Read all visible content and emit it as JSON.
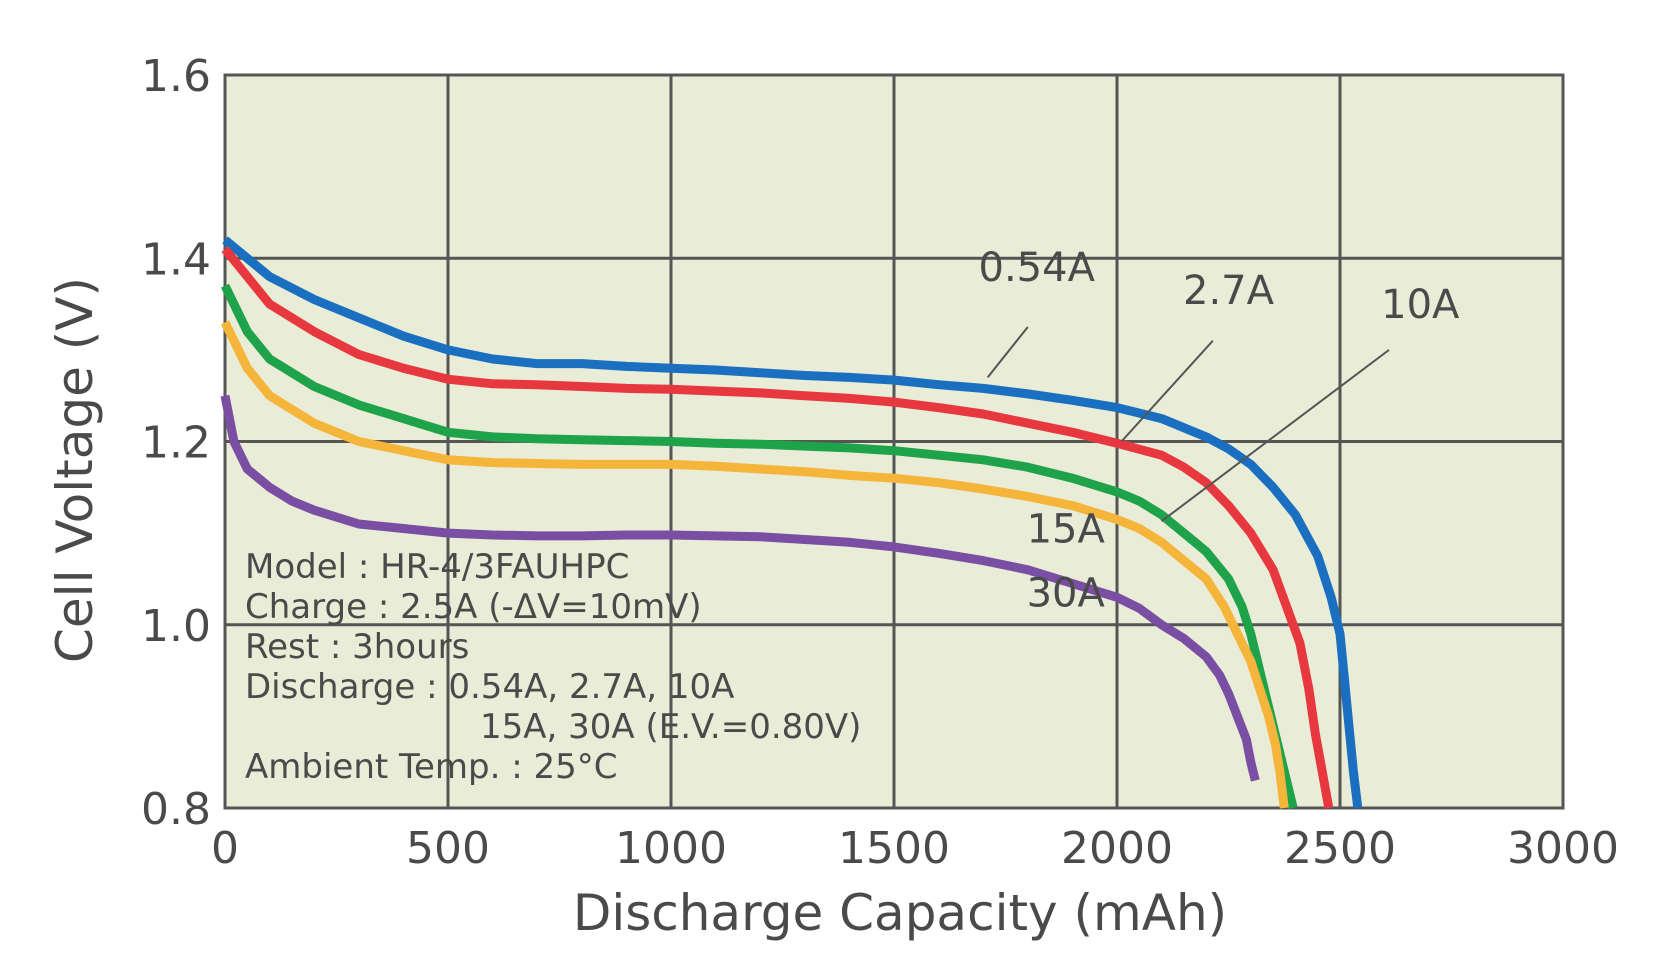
{
  "chart_data": {
    "type": "line",
    "xlabel": "Discharge Capacity (mAh)",
    "ylabel": "Cell Voltage (V)",
    "xlim": [
      0,
      3000
    ],
    "ylim": [
      0.8,
      1.6
    ],
    "xticks": [
      0,
      500,
      1000,
      1500,
      2000,
      2500,
      3000
    ],
    "yticks": [
      0.8,
      1.0,
      1.2,
      1.4,
      1.6
    ],
    "xtick_labels": [
      "0",
      "500",
      "1000",
      "1500",
      "2000",
      "2500",
      "3000"
    ],
    "ytick_labels": [
      "0.8",
      "1.0",
      "1.2",
      "1.4",
      "1.6"
    ],
    "grid": true,
    "colors": {
      "plot_background": "#e9ecd6",
      "grid": "#555555",
      "text": "#4a4a4a"
    },
    "series": [
      {
        "name": "0.54A",
        "color": "#1a6fc0",
        "x": [
          0,
          100,
          200,
          300,
          400,
          500,
          600,
          700,
          800,
          900,
          1000,
          1100,
          1200,
          1300,
          1400,
          1500,
          1600,
          1700,
          1800,
          1900,
          2000,
          2100,
          2200,
          2250,
          2300,
          2350,
          2400,
          2450,
          2480,
          2500,
          2510,
          2520,
          2530,
          2540
        ],
        "y": [
          1.42,
          1.38,
          1.355,
          1.335,
          1.315,
          1.3,
          1.29,
          1.285,
          1.285,
          1.282,
          1.28,
          1.278,
          1.275,
          1.272,
          1.27,
          1.267,
          1.262,
          1.258,
          1.252,
          1.245,
          1.237,
          1.225,
          1.205,
          1.192,
          1.175,
          1.15,
          1.12,
          1.075,
          1.03,
          0.99,
          0.94,
          0.89,
          0.84,
          0.8
        ]
      },
      {
        "name": "2.7A",
        "color": "#e8383f",
        "x": [
          0,
          50,
          100,
          200,
          300,
          400,
          500,
          600,
          700,
          800,
          900,
          1000,
          1100,
          1200,
          1300,
          1400,
          1500,
          1600,
          1700,
          1800,
          1900,
          2000,
          2100,
          2150,
          2200,
          2250,
          2300,
          2350,
          2380,
          2410,
          2430,
          2445,
          2460,
          2475
        ],
        "y": [
          1.41,
          1.38,
          1.35,
          1.32,
          1.295,
          1.28,
          1.268,
          1.263,
          1.262,
          1.26,
          1.258,
          1.257,
          1.255,
          1.253,
          1.25,
          1.247,
          1.243,
          1.237,
          1.23,
          1.22,
          1.21,
          1.198,
          1.185,
          1.172,
          1.155,
          1.13,
          1.1,
          1.06,
          1.02,
          0.98,
          0.93,
          0.88,
          0.84,
          0.8
        ]
      },
      {
        "name": "10A",
        "color": "#1fa34a",
        "x": [
          0,
          50,
          100,
          200,
          300,
          400,
          500,
          600,
          700,
          800,
          900,
          1000,
          1100,
          1200,
          1300,
          1400,
          1500,
          1600,
          1700,
          1800,
          1900,
          2000,
          2050,
          2100,
          2150,
          2200,
          2250,
          2280,
          2300,
          2320,
          2340,
          2360,
          2380,
          2395
        ],
        "y": [
          1.37,
          1.32,
          1.29,
          1.26,
          1.24,
          1.225,
          1.21,
          1.205,
          1.203,
          1.202,
          1.201,
          1.2,
          1.198,
          1.197,
          1.195,
          1.193,
          1.19,
          1.185,
          1.18,
          1.172,
          1.16,
          1.145,
          1.135,
          1.12,
          1.1,
          1.08,
          1.05,
          1.02,
          0.99,
          0.95,
          0.91,
          0.87,
          0.83,
          0.8
        ]
      },
      {
        "name": "15A",
        "color": "#f5b53a",
        "x": [
          0,
          50,
          100,
          200,
          300,
          400,
          500,
          600,
          700,
          800,
          900,
          1000,
          1100,
          1200,
          1300,
          1400,
          1500,
          1600,
          1700,
          1800,
          1900,
          2000,
          2050,
          2100,
          2150,
          2200,
          2240,
          2270,
          2300,
          2320,
          2340,
          2355,
          2365,
          2375
        ],
        "y": [
          1.33,
          1.28,
          1.25,
          1.22,
          1.2,
          1.19,
          1.18,
          1.177,
          1.176,
          1.175,
          1.175,
          1.175,
          1.173,
          1.17,
          1.167,
          1.163,
          1.16,
          1.155,
          1.148,
          1.14,
          1.13,
          1.115,
          1.105,
          1.09,
          1.07,
          1.05,
          1.02,
          0.99,
          0.96,
          0.93,
          0.9,
          0.87,
          0.84,
          0.8
        ]
      },
      {
        "name": "30A",
        "color": "#7a4fa3",
        "x": [
          0,
          20,
          50,
          100,
          150,
          200,
          300,
          400,
          500,
          600,
          700,
          800,
          900,
          1000,
          1100,
          1200,
          1300,
          1400,
          1500,
          1600,
          1700,
          1800,
          1900,
          2000,
          2050,
          2100,
          2150,
          2200,
          2230,
          2250,
          2270,
          2290,
          2300,
          2310
        ],
        "y": [
          1.25,
          1.2,
          1.17,
          1.15,
          1.135,
          1.125,
          1.11,
          1.105,
          1.1,
          1.098,
          1.097,
          1.097,
          1.098,
          1.098,
          1.097,
          1.096,
          1.093,
          1.09,
          1.085,
          1.078,
          1.07,
          1.06,
          1.045,
          1.03,
          1.018,
          1.0,
          0.985,
          0.965,
          0.945,
          0.925,
          0.9,
          0.875,
          0.85,
          0.83
        ]
      }
    ],
    "series_labels": [
      {
        "text": "0.54A",
        "x": 1820,
        "y": 1.375,
        "leader_from": [
          1800,
          1.325
        ],
        "leader_to": [
          1710,
          1.27
        ]
      },
      {
        "text": "2.7A",
        "x": 2250,
        "y": 1.35,
        "leader_from": [
          2215,
          1.31
        ],
        "leader_to": [
          2010,
          1.2
        ]
      },
      {
        "text": "10A",
        "x": 2680,
        "y": 1.335,
        "leader_from": [
          2610,
          1.3
        ],
        "leader_to": [
          2100,
          1.113
        ]
      },
      {
        "text": "15A",
        "x": 1885,
        "y": 1.09,
        "leader_from": null,
        "leader_to": null
      },
      {
        "text": "30A",
        "x": 1885,
        "y": 1.02,
        "leader_from": null,
        "leader_to": null
      }
    ],
    "annotations": [
      "Model : HR-4/3FAUHPC",
      "Charge : 2.5A (-ΔV=10mV)",
      "Rest : 3hours",
      "Discharge : 0.54A, 2.7A, 10A",
      "15A, 30A (E.V.=0.80V)",
      "Ambient Temp. : 25°C"
    ]
  }
}
